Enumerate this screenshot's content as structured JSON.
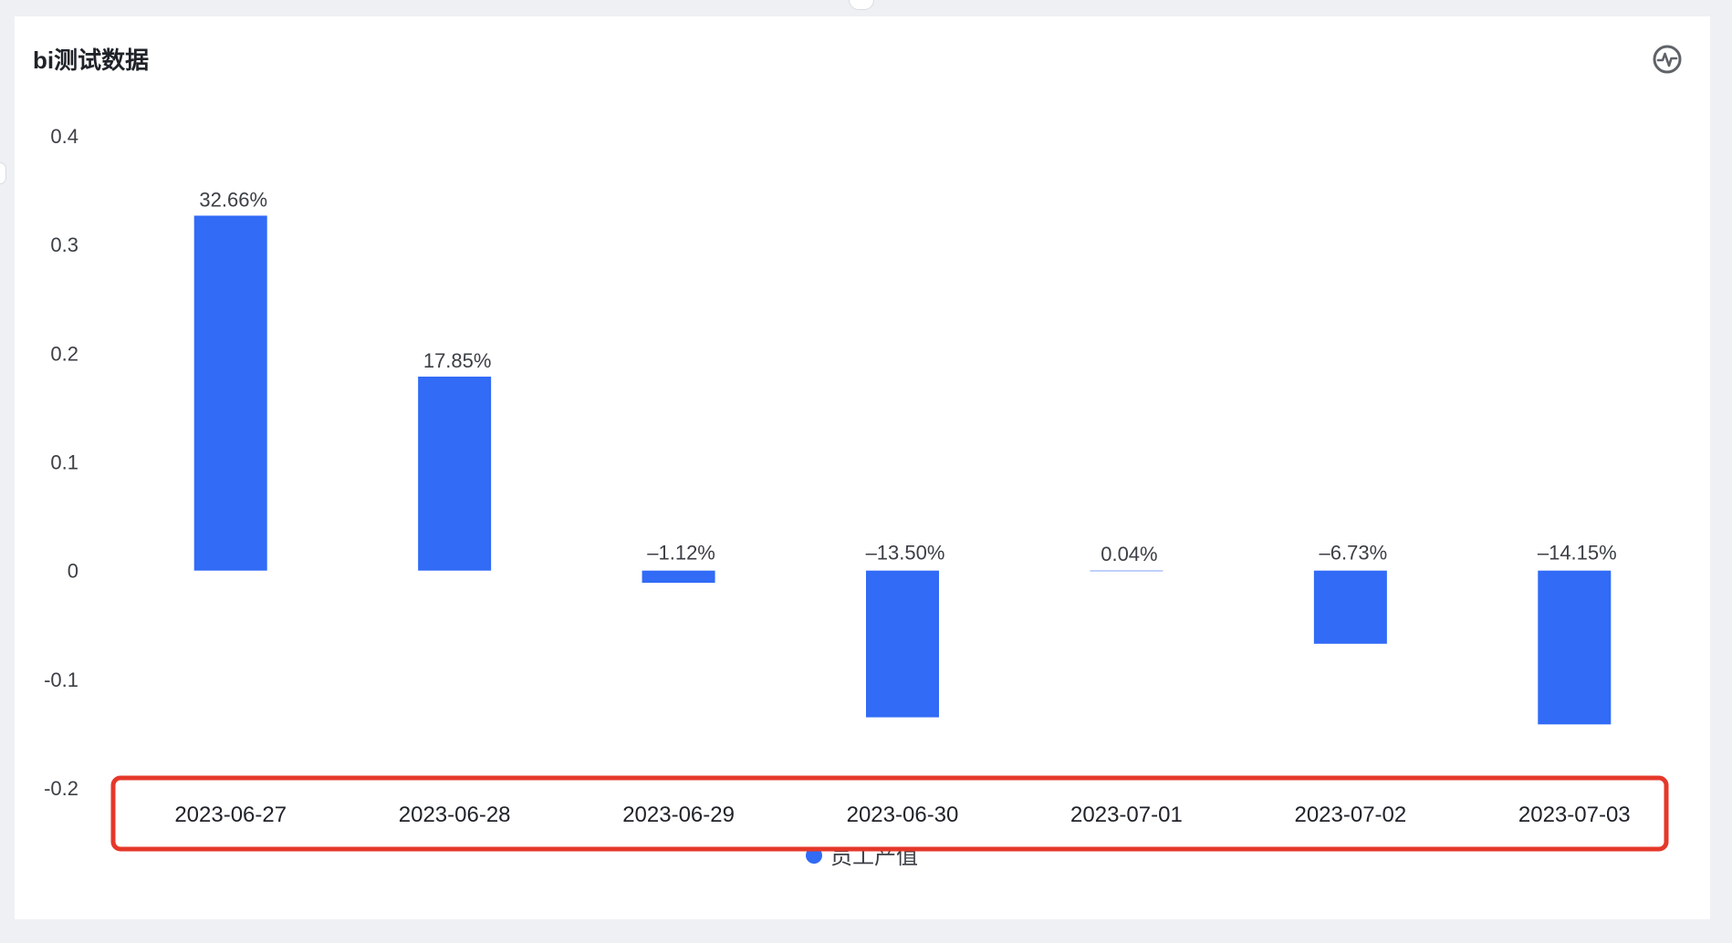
{
  "card": {
    "title": "bi测试数据",
    "icon": "activity-icon"
  },
  "chart_data": {
    "type": "bar",
    "categories": [
      "2023-06-27",
      "2023-06-28",
      "2023-06-29",
      "2023-06-30",
      "2023-07-01",
      "2023-07-02",
      "2023-07-03"
    ],
    "series": [
      {
        "name": "员工产值",
        "values": [
          0.3266,
          0.1785,
          -0.0112,
          -0.135,
          0.0004,
          -0.0673,
          -0.1415
        ],
        "labels": [
          "32.66%",
          "17.85%",
          "–1.12%",
          "–13.50%",
          "0.04%",
          "–6.73%",
          "–14.15%"
        ]
      }
    ],
    "ylim": [
      -0.2,
      0.4
    ],
    "yticks": [
      "-0.2",
      "-0.1",
      "0",
      "0.1",
      "0.2",
      "0.3",
      "0.4"
    ],
    "legend": "bottom-center",
    "bar_color": "#316bf6",
    "annotation_color": "#e5382a"
  }
}
